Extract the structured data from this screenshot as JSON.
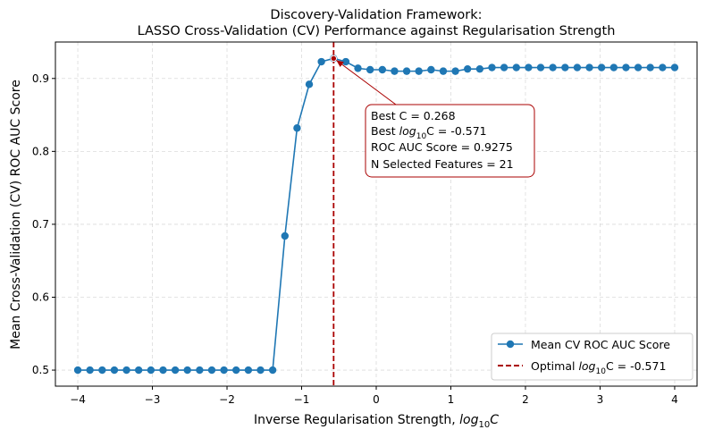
{
  "chart_data": {
    "type": "line",
    "title": "Discovery-Validation Framework:",
    "subtitle": "LASSO Cross-Validation (CV) Performance against Regularisation Strength",
    "xlabel": "Inverse Regularisation Strength, ",
    "xlabel_math": "log",
    "xlabel_sub": "10",
    "xlabel_tail": "C",
    "ylabel": "Mean Cross-Validation (CV) ROC AUC Score",
    "xlim": [
      -4.3,
      4.3
    ],
    "ylim": [
      0.478,
      0.95
    ],
    "xticks": [
      -4,
      -3,
      -2,
      -1,
      0,
      1,
      2,
      3,
      4
    ],
    "xtick_labels": [
      "−4",
      "−3",
      "−2",
      "−1",
      "0",
      "1",
      "2",
      "3",
      "4"
    ],
    "yticks": [
      0.5,
      0.6,
      0.7,
      0.8,
      0.9
    ],
    "ytick_labels": [
      "0.5",
      "0.6",
      "0.7",
      "0.8",
      "0.9"
    ],
    "grid": true,
    "series": [
      {
        "name": "Mean CV ROC AUC Score",
        "color": "#1f77b4",
        "x": [
          -4.0,
          -3.837,
          -3.673,
          -3.51,
          -3.347,
          -3.184,
          -3.02,
          -2.857,
          -2.694,
          -2.531,
          -2.367,
          -2.204,
          -2.041,
          -1.878,
          -1.714,
          -1.551,
          -1.388,
          -1.224,
          -1.061,
          -0.898,
          -0.735,
          -0.571,
          -0.408,
          -0.245,
          -0.082,
          0.082,
          0.245,
          0.408,
          0.571,
          0.735,
          0.898,
          1.061,
          1.224,
          1.388,
          1.551,
          1.714,
          1.878,
          2.041,
          2.204,
          2.367,
          2.531,
          2.694,
          2.857,
          3.02,
          3.184,
          3.347,
          3.51,
          3.673,
          3.837,
          4.0
        ],
        "y": [
          0.5,
          0.5,
          0.5,
          0.5,
          0.5,
          0.5,
          0.5,
          0.5,
          0.5,
          0.5,
          0.5,
          0.5,
          0.5,
          0.5,
          0.5,
          0.5,
          0.5,
          0.684,
          0.832,
          0.892,
          0.923,
          0.9275,
          0.923,
          0.914,
          0.912,
          0.912,
          0.91,
          0.91,
          0.91,
          0.912,
          0.91,
          0.91,
          0.913,
          0.913,
          0.915,
          0.915,
          0.915,
          0.915,
          0.915,
          0.915,
          0.915,
          0.915,
          0.915,
          0.915,
          0.915,
          0.915,
          0.915,
          0.915,
          0.915,
          0.915
        ]
      }
    ],
    "optimal": {
      "log10C": -0.571,
      "score": 0.9275,
      "color": "#aa0000",
      "legend_label": "Optimal ",
      "legend_math": "log",
      "legend_sub": "10",
      "legend_tail": "C = -0.571"
    },
    "annotation": {
      "line1": "Best C = 0.268",
      "line2_prefix": "Best ",
      "line2_math": "log",
      "line2_sub": "10",
      "line2_tail": "C = -0.571",
      "line3": "ROC AUC Score = 0.9275",
      "line4": "N Selected Features = 21"
    },
    "legend_position": "lower-right"
  }
}
